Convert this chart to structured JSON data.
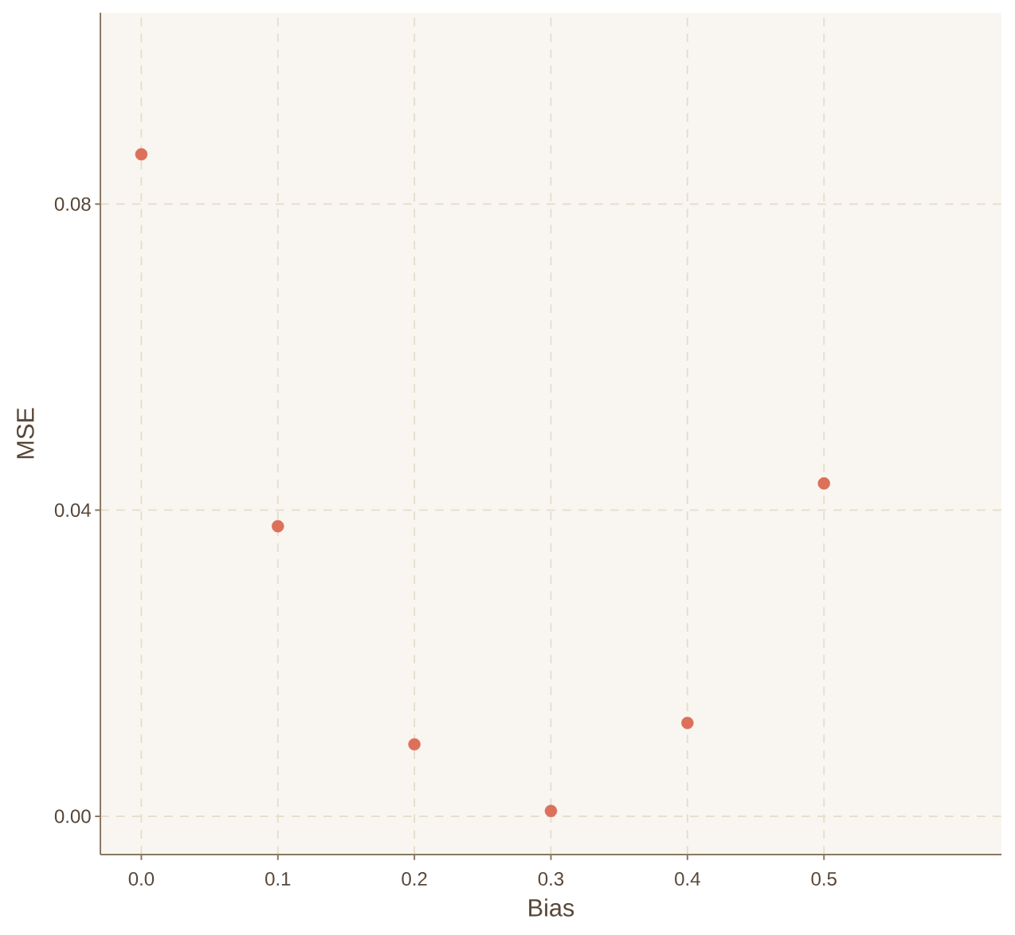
{
  "chart_data": {
    "type": "scatter",
    "xlabel": "Bias",
    "ylabel": "MSE",
    "x": [
      0,
      0.1,
      0.2,
      0.3,
      0.4,
      0.5
    ],
    "values": [
      0.0865,
      0.0379,
      0.0094,
      0.0007,
      0.0122,
      0.0435
    ],
    "color": "#dc705a",
    "marker": "circle",
    "grid": true,
    "xlim": [
      -0.03,
      0.63
    ],
    "ylim": [
      -0.005,
      0.105
    ],
    "xticks": [
      {
        "value": 0,
        "label": "0.0"
      },
      0.1,
      0.2,
      0.3,
      0.4,
      0.5
    ],
    "yticks": [
      {
        "value": 0,
        "label": "0.00"
      },
      0.04,
      0.08
    ]
  }
}
